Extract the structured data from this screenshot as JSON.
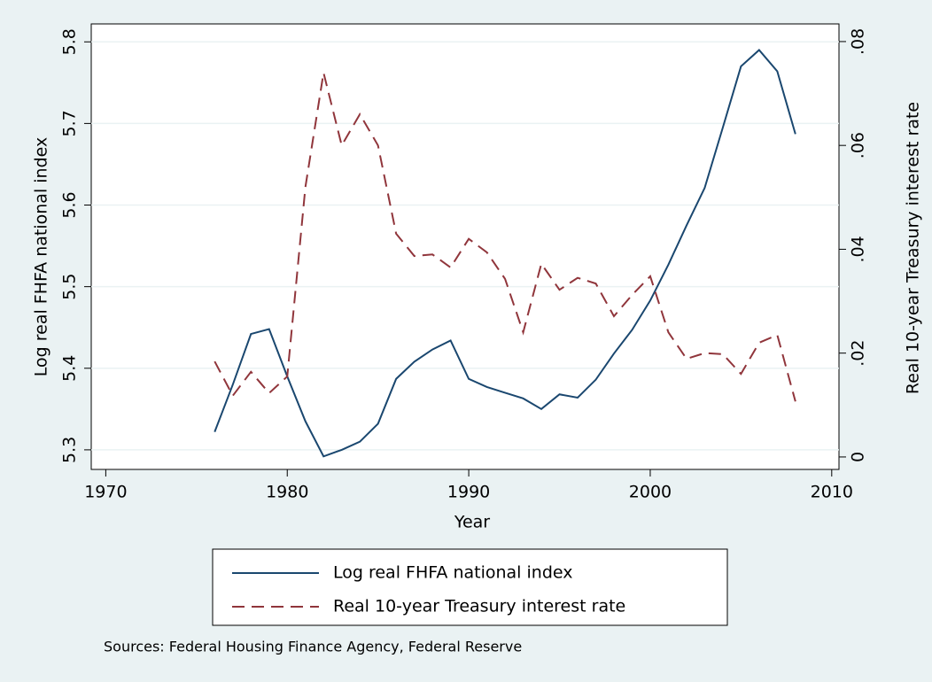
{
  "chart_data": {
    "type": "line",
    "xlabel": "Year",
    "ylabel": "Log real FHFA national index",
    "y2label": "Real 10-year Treasury interest rate",
    "note": "Sources: Federal Housing Finance Agency, Federal Reserve",
    "x": [
      1976,
      1977,
      1978,
      1979,
      1980,
      1981,
      1982,
      1983,
      1984,
      1985,
      1986,
      1987,
      1988,
      1989,
      1990,
      1991,
      1992,
      1993,
      1994,
      1995,
      1996,
      1997,
      1998,
      1999,
      2000,
      2001,
      2002,
      2003,
      2004,
      2005,
      2006,
      2007,
      2008
    ],
    "xlim": [
      1969.2,
      2010.4
    ],
    "xticks": [
      1970,
      1980,
      1990,
      2000,
      2010
    ],
    "ylim": [
      5.276,
      5.822
    ],
    "yticks": [
      5.3,
      5.4,
      5.5,
      5.6,
      5.7,
      5.8
    ],
    "y2lim": [
      -0.0024,
      0.0834
    ],
    "y2ticks": [
      0,
      {
        "value": 0.02,
        "label": ".02"
      },
      {
        "value": 0.04,
        "label": ".04"
      },
      {
        "value": 0.06,
        "label": ".06"
      },
      {
        "value": 0.08,
        "label": ".08"
      }
    ],
    "grid": true,
    "legend": "bottom",
    "series": [
      {
        "name": "Log real FHFA national index",
        "color": "#1a476f",
        "dash": "solid",
        "values": [
          5.322,
          5.38,
          5.442,
          5.448,
          5.39,
          5.335,
          5.292,
          5.3,
          5.31,
          5.332,
          5.387,
          5.408,
          5.423,
          5.434,
          5.387,
          5.377,
          5.37,
          5.363,
          5.35,
          5.368,
          5.364,
          5.386,
          5.418,
          5.447,
          5.483,
          5.527,
          5.575,
          5.621,
          5.695,
          5.77,
          5.79,
          5.764,
          5.687
        ]
      },
      {
        "name": "Real 10-year Treasury interest rate",
        "color": "#90353b",
        "dash": "dashed",
        "axis": "y2",
        "values": [
          0.0184,
          0.0118,
          0.0164,
          0.0123,
          0.0155,
          0.052,
          0.074,
          0.06,
          0.066,
          0.06,
          0.043,
          0.0387,
          0.039,
          0.0365,
          0.042,
          0.0394,
          0.0343,
          0.024,
          0.0372,
          0.0322,
          0.0345,
          0.0334,
          0.0271,
          0.0312,
          0.0348,
          0.024,
          0.0189,
          0.02,
          0.0198,
          0.016,
          0.022,
          0.0235,
          0.0107
        ]
      }
    ]
  }
}
